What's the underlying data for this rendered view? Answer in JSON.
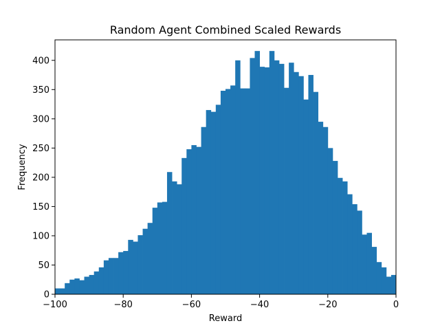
{
  "chart_data": {
    "type": "histogram",
    "title": "Random Agent Combined Scaled Rewards",
    "xlabel": "Reward",
    "ylabel": "Frequency",
    "xlim": [
      -100,
      0
    ],
    "ylim": [
      0,
      435
    ],
    "grid": false,
    "legend": "none",
    "bar_color": "#1f77b4",
    "bin_width": 1.4286,
    "xticks": [
      -100,
      -80,
      -60,
      -40,
      -20,
      0
    ],
    "yticks": [
      0,
      50,
      100,
      150,
      200,
      250,
      300,
      350,
      400
    ],
    "bins_start": [
      -100,
      -98.5714,
      -97.1429,
      -95.7143,
      -94.2857,
      -92.8571,
      -91.4286,
      -90,
      -88.5714,
      -87.1429,
      -85.7143,
      -84.2857,
      -82.8571,
      -81.4286,
      -80,
      -78.5714,
      -77.1429,
      -75.7143,
      -74.2857,
      -72.8571,
      -71.4286,
      -70,
      -68.5714,
      -67.1429,
      -65.7143,
      -64.2857,
      -62.8571,
      -61.4286,
      -60,
      -58.5714,
      -57.1429,
      -55.7143,
      -54.2857,
      -52.8571,
      -51.4286,
      -50,
      -48.5714,
      -47.1429,
      -45.7143,
      -44.2857,
      -42.8571,
      -41.4286,
      -40,
      -38.5714,
      -37.1429,
      -35.7143,
      -34.2857,
      -32.8571,
      -31.4286,
      -30,
      -28.5714,
      -27.1429,
      -25.7143,
      -24.2857,
      -22.8571,
      -21.4286,
      -20,
      -18.5714,
      -17.1429,
      -15.7143,
      -14.2857,
      -12.8571,
      -11.4286,
      -10,
      -8.5714,
      -7.1429,
      -5.7143,
      -4.2857,
      -2.8571,
      -1.4286
    ],
    "values": [
      10,
      10,
      19,
      25,
      27,
      24,
      30,
      33,
      39,
      46,
      58,
      62,
      62,
      72,
      74,
      93,
      90,
      101,
      112,
      122,
      148,
      157,
      158,
      209,
      193,
      188,
      233,
      248,
      255,
      252,
      286,
      315,
      312,
      324,
      348,
      351,
      357,
      400,
      352,
      352,
      404,
      416,
      389,
      388,
      416,
      400,
      394,
      353,
      396,
      380,
      373,
      333,
      375,
      346,
      295,
      286,
      250,
      228,
      199,
      193,
      171,
      154,
      143,
      102,
      105,
      81,
      55,
      46,
      30,
      33
    ]
  }
}
